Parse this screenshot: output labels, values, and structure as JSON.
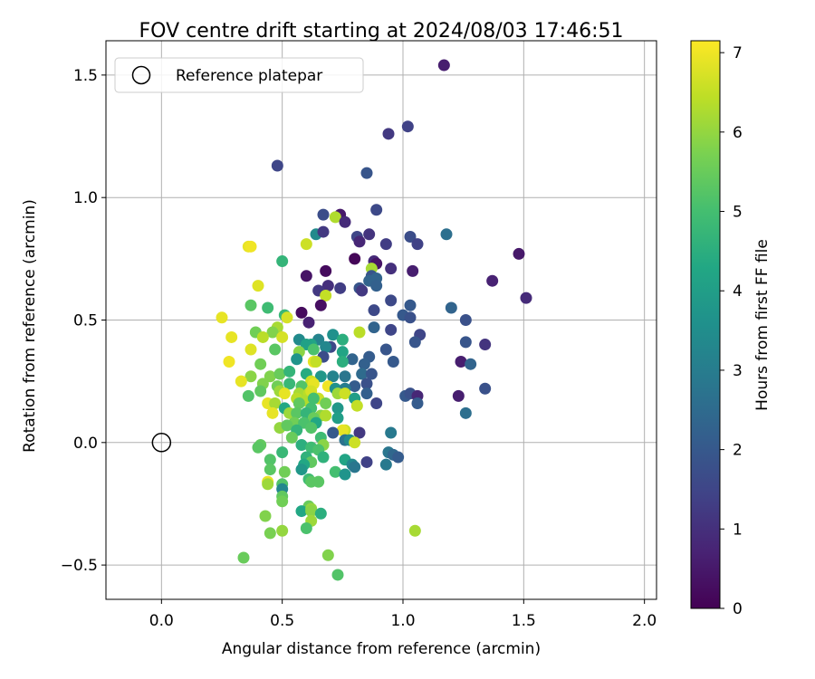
{
  "chart_data": {
    "type": "scatter",
    "title": "FOV centre drift starting at 2024/08/03 17:46:51",
    "xlabel": "Angular distance from reference (arcmin)",
    "ylabel": "Rotation from reference (arcmin)",
    "xlim": [
      -0.23,
      2.05
    ],
    "ylim": [
      -0.64,
      1.64
    ],
    "xticks": [
      0.0,
      0.5,
      1.0,
      1.5,
      2.0
    ],
    "xtick_labels": [
      "0.0",
      "0.5",
      "1.0",
      "1.5",
      "2.0"
    ],
    "yticks": [
      -0.5,
      0.0,
      0.5,
      1.0,
      1.5
    ],
    "ytick_labels": [
      "−0.5",
      "0.0",
      "0.5",
      "1.0",
      "1.5"
    ],
    "grid": true,
    "legend": {
      "position": "top-left",
      "entries": [
        "Reference platepar"
      ]
    },
    "reference_point": {
      "x": 0.0,
      "y": 0.0
    },
    "colorbar": {
      "label": "Hours from first FF file",
      "range": [
        0,
        7.15
      ],
      "ticks": [
        0,
        1,
        2,
        3,
        4,
        5,
        6,
        7
      ],
      "tick_labels": [
        "0",
        "1",
        "2",
        "3",
        "4",
        "5",
        "6",
        "7"
      ],
      "colormap": "viridis"
    },
    "point_fields": [
      "x",
      "y",
      "hours"
    ],
    "points": [
      [
        1.17,
        1.54,
        0.6
      ],
      [
        1.02,
        1.29,
        1.4
      ],
      [
        0.94,
        1.26,
        1.2
      ],
      [
        0.48,
        1.13,
        1.5
      ],
      [
        0.85,
        1.1,
        1.9
      ],
      [
        0.89,
        0.95,
        1.6
      ],
      [
        0.67,
        0.93,
        1.7
      ],
      [
        0.74,
        0.93,
        0.5
      ],
      [
        0.72,
        0.92,
        6.3
      ],
      [
        0.76,
        0.9,
        0.9
      ],
      [
        0.64,
        0.85,
        3.4
      ],
      [
        0.67,
        0.86,
        1.2
      ],
      [
        0.81,
        0.84,
        1.5
      ],
      [
        0.86,
        0.85,
        1.1
      ],
      [
        1.03,
        0.84,
        1.7
      ],
      [
        1.18,
        0.85,
        2.6
      ],
      [
        1.06,
        0.81,
        1.4
      ],
      [
        0.82,
        0.82,
        0.8
      ],
      [
        0.93,
        0.81,
        1.3
      ],
      [
        0.6,
        0.81,
        6.6
      ],
      [
        0.36,
        0.8,
        6.9
      ],
      [
        0.37,
        0.8,
        7.0
      ],
      [
        1.48,
        0.77,
        0.5
      ],
      [
        0.5,
        0.74,
        4.7
      ],
      [
        0.88,
        0.74,
        0.9
      ],
      [
        0.89,
        0.73,
        0.4
      ],
      [
        0.8,
        0.75,
        0.1
      ],
      [
        0.95,
        0.71,
        1.0
      ],
      [
        0.68,
        0.7,
        0.2
      ],
      [
        0.87,
        0.71,
        6.2
      ],
      [
        1.04,
        0.7,
        0.6
      ],
      [
        0.6,
        0.68,
        0.4
      ],
      [
        0.87,
        0.68,
        1.9
      ],
      [
        0.86,
        0.66,
        2.3
      ],
      [
        0.89,
        0.67,
        2.3
      ],
      [
        0.82,
        0.63,
        1.9
      ],
      [
        1.37,
        0.66,
        0.7
      ],
      [
        0.69,
        0.64,
        1.0
      ],
      [
        0.65,
        0.62,
        1.2
      ],
      [
        0.74,
        0.63,
        1.3
      ],
      [
        0.89,
        0.64,
        2.2
      ],
      [
        0.83,
        0.62,
        1.2
      ],
      [
        0.4,
        0.64,
        6.8
      ],
      [
        0.68,
        0.6,
        6.5
      ],
      [
        1.51,
        0.59,
        0.9
      ],
      [
        0.66,
        0.56,
        0.3
      ],
      [
        0.95,
        0.58,
        1.6
      ],
      [
        1.03,
        0.56,
        2.0
      ],
      [
        1.2,
        0.55,
        2.3
      ],
      [
        0.37,
        0.56,
        5.3
      ],
      [
        0.44,
        0.55,
        4.9
      ],
      [
        0.58,
        0.53,
        0.2
      ],
      [
        0.88,
        0.54,
        1.6
      ],
      [
        0.51,
        0.52,
        4.8
      ],
      [
        0.25,
        0.51,
        6.9
      ],
      [
        0.52,
        0.51,
        6.7
      ],
      [
        1.0,
        0.52,
        2.0
      ],
      [
        1.03,
        0.51,
        1.8
      ],
      [
        1.26,
        0.5,
        1.8
      ],
      [
        0.61,
        0.49,
        0.7
      ],
      [
        0.48,
        0.47,
        6.2
      ],
      [
        0.95,
        0.46,
        1.5
      ],
      [
        0.88,
        0.47,
        2.3
      ],
      [
        0.39,
        0.45,
        5.6
      ],
      [
        0.46,
        0.45,
        5.8
      ],
      [
        0.71,
        0.44,
        3.6
      ],
      [
        1.07,
        0.44,
        1.5
      ],
      [
        0.5,
        0.43,
        6.7
      ],
      [
        0.29,
        0.43,
        6.9
      ],
      [
        0.42,
        0.43,
        6.4
      ],
      [
        1.26,
        0.41,
        1.9
      ],
      [
        0.57,
        0.42,
        3.4
      ],
      [
        0.65,
        0.42,
        3.2
      ],
      [
        0.75,
        0.42,
        4.5
      ],
      [
        0.82,
        0.45,
        6.4
      ],
      [
        1.05,
        0.41,
        1.9
      ],
      [
        0.62,
        0.4,
        4.2
      ],
      [
        0.7,
        0.39,
        1.6
      ],
      [
        0.68,
        0.39,
        3.3
      ],
      [
        0.6,
        0.4,
        4.1
      ],
      [
        1.34,
        0.4,
        1.1
      ],
      [
        0.47,
        0.38,
        5.3
      ],
      [
        0.37,
        0.38,
        6.8
      ],
      [
        0.93,
        0.38,
        1.9
      ],
      [
        0.63,
        0.38,
        5.1
      ],
      [
        0.57,
        0.37,
        5.9
      ],
      [
        0.75,
        0.37,
        4.2
      ],
      [
        0.67,
        0.35,
        1.7
      ],
      [
        0.86,
        0.35,
        2.1
      ],
      [
        0.79,
        0.34,
        2.3
      ],
      [
        0.56,
        0.34,
        3.7
      ],
      [
        0.75,
        0.33,
        4.5
      ],
      [
        0.63,
        0.33,
        6.9
      ],
      [
        0.64,
        0.33,
        6.5
      ],
      [
        0.84,
        0.32,
        2.2
      ],
      [
        1.24,
        0.33,
        0.6
      ],
      [
        1.28,
        0.32,
        2.3
      ],
      [
        0.41,
        0.32,
        5.6
      ],
      [
        0.96,
        0.33,
        2.0
      ],
      [
        0.28,
        0.33,
        7.0
      ],
      [
        0.37,
        0.27,
        5.9
      ],
      [
        0.45,
        0.27,
        5.8
      ],
      [
        0.49,
        0.28,
        5.5
      ],
      [
        0.53,
        0.29,
        4.7
      ],
      [
        0.6,
        0.28,
        4.4
      ],
      [
        0.66,
        0.27,
        3.8
      ],
      [
        0.71,
        0.27,
        3.2
      ],
      [
        0.76,
        0.27,
        2.8
      ],
      [
        0.83,
        0.28,
        2.5
      ],
      [
        0.87,
        0.28,
        1.9
      ],
      [
        0.33,
        0.25,
        6.9
      ],
      [
        0.42,
        0.24,
        5.8
      ],
      [
        0.53,
        0.24,
        4.8
      ],
      [
        0.62,
        0.25,
        6.6
      ],
      [
        0.63,
        0.24,
        6.9
      ],
      [
        0.69,
        0.23,
        7.0
      ],
      [
        0.72,
        0.22,
        3.6
      ],
      [
        0.8,
        0.23,
        2.1
      ],
      [
        0.76,
        0.22,
        3.0
      ],
      [
        0.85,
        0.24,
        1.8
      ],
      [
        0.48,
        0.23,
        5.6
      ],
      [
        0.58,
        0.23,
        5.2
      ],
      [
        0.41,
        0.21,
        5.4
      ],
      [
        0.49,
        0.21,
        6.1
      ],
      [
        0.51,
        0.2,
        6.9
      ],
      [
        0.57,
        0.2,
        6.2
      ],
      [
        0.61,
        0.2,
        6.4
      ],
      [
        0.62,
        0.21,
        6.7
      ],
      [
        0.73,
        0.2,
        6.1
      ],
      [
        0.76,
        0.2,
        6.6
      ],
      [
        0.85,
        0.2,
        2.2
      ],
      [
        1.01,
        0.19,
        2.0
      ],
      [
        1.03,
        0.2,
        1.8
      ],
      [
        1.06,
        0.19,
        0.8
      ],
      [
        1.23,
        0.19,
        0.6
      ],
      [
        0.36,
        0.19,
        5.2
      ],
      [
        0.56,
        0.18,
        6.4
      ],
      [
        0.59,
        0.17,
        6.3
      ],
      [
        0.65,
        0.18,
        6.6
      ],
      [
        0.63,
        0.18,
        5.0
      ],
      [
        0.8,
        0.18,
        4.0
      ],
      [
        0.68,
        0.16,
        5.6
      ],
      [
        1.34,
        0.22,
        1.8
      ],
      [
        1.06,
        0.16,
        2.1
      ],
      [
        0.44,
        0.16,
        6.9
      ],
      [
        0.47,
        0.16,
        6.2
      ],
      [
        0.57,
        0.16,
        5.4
      ],
      [
        0.81,
        0.15,
        6.5
      ],
      [
        0.89,
        0.16,
        1.5
      ],
      [
        0.51,
        0.14,
        4.3
      ],
      [
        0.62,
        0.14,
        5.0
      ],
      [
        0.73,
        0.14,
        3.8
      ],
      [
        0.46,
        0.12,
        6.9
      ],
      [
        0.53,
        0.12,
        6.1
      ],
      [
        0.56,
        0.12,
        5.3
      ],
      [
        0.6,
        0.12,
        4.7
      ],
      [
        0.66,
        0.11,
        5.9
      ],
      [
        0.68,
        0.11,
        6.3
      ],
      [
        0.63,
        0.1,
        5.5
      ],
      [
        0.73,
        0.1,
        4.0
      ],
      [
        1.26,
        0.12,
        2.6
      ],
      [
        0.55,
        0.08,
        5.6
      ],
      [
        0.59,
        0.08,
        5.1
      ],
      [
        0.64,
        0.08,
        4.3
      ],
      [
        0.49,
        0.06,
        6.0
      ],
      [
        0.52,
        0.07,
        5.4
      ],
      [
        0.62,
        0.06,
        5.2
      ],
      [
        0.56,
        0.05,
        4.7
      ],
      [
        0.76,
        0.05,
        6.6
      ],
      [
        0.75,
        0.05,
        6.9
      ],
      [
        0.71,
        0.04,
        2.0
      ],
      [
        0.82,
        0.04,
        1.2
      ],
      [
        0.95,
        0.04,
        2.9
      ],
      [
        0.66,
        0.02,
        4.9
      ],
      [
        0.54,
        0.02,
        5.5
      ],
      [
        0.76,
        0.01,
        2.7
      ],
      [
        0.78,
        0.01,
        3.4
      ],
      [
        0.8,
        0.0,
        6.6
      ],
      [
        0.67,
        -0.01,
        5.9
      ],
      [
        0.41,
        -0.01,
        5.4
      ],
      [
        0.4,
        -0.02,
        5.3
      ],
      [
        0.58,
        -0.01,
        4.5
      ],
      [
        0.62,
        -0.02,
        4.9
      ],
      [
        0.65,
        -0.03,
        5.1
      ],
      [
        0.5,
        -0.04,
        4.8
      ],
      [
        0.94,
        -0.04,
        2.8
      ],
      [
        0.96,
        -0.05,
        2.4
      ],
      [
        0.98,
        -0.06,
        2.1
      ],
      [
        0.45,
        -0.07,
        5.2
      ],
      [
        0.6,
        -0.06,
        4.6
      ],
      [
        0.67,
        -0.06,
        4.6
      ],
      [
        0.76,
        -0.07,
        4.2
      ],
      [
        0.62,
        -0.08,
        5.4
      ],
      [
        0.85,
        -0.08,
        1.4
      ],
      [
        0.79,
        -0.09,
        3.3
      ],
      [
        0.59,
        -0.09,
        4.3
      ],
      [
        0.93,
        -0.09,
        2.9
      ],
      [
        0.8,
        -0.1,
        2.8
      ],
      [
        0.45,
        -0.11,
        5.3
      ],
      [
        0.58,
        -0.11,
        3.8
      ],
      [
        0.51,
        -0.12,
        5.6
      ],
      [
        0.72,
        -0.12,
        5.0
      ],
      [
        0.76,
        -0.13,
        3.7
      ],
      [
        0.61,
        -0.15,
        4.9
      ],
      [
        0.65,
        -0.16,
        5.3
      ],
      [
        0.44,
        -0.16,
        6.9
      ],
      [
        0.44,
        -0.17,
        6.1
      ],
      [
        0.5,
        -0.17,
        5.2
      ],
      [
        0.62,
        -0.16,
        5.3
      ],
      [
        0.5,
        -0.19,
        3.3
      ],
      [
        0.5,
        -0.22,
        5.4
      ],
      [
        0.5,
        -0.24,
        5.6
      ],
      [
        0.61,
        -0.26,
        5.5
      ],
      [
        0.58,
        -0.28,
        4.3
      ],
      [
        0.62,
        -0.27,
        6.0
      ],
      [
        0.62,
        -0.28,
        5.9
      ],
      [
        0.66,
        -0.29,
        4.5
      ],
      [
        0.43,
        -0.3,
        5.8
      ],
      [
        0.62,
        -0.32,
        6.1
      ],
      [
        0.6,
        -0.35,
        5.1
      ],
      [
        0.5,
        -0.36,
        6.0
      ],
      [
        0.45,
        -0.37,
        5.7
      ],
      [
        1.05,
        -0.36,
        6.2
      ],
      [
        0.69,
        -0.46,
        5.8
      ],
      [
        0.34,
        -0.47,
        5.5
      ],
      [
        0.73,
        -0.54,
        5.2
      ]
    ]
  }
}
